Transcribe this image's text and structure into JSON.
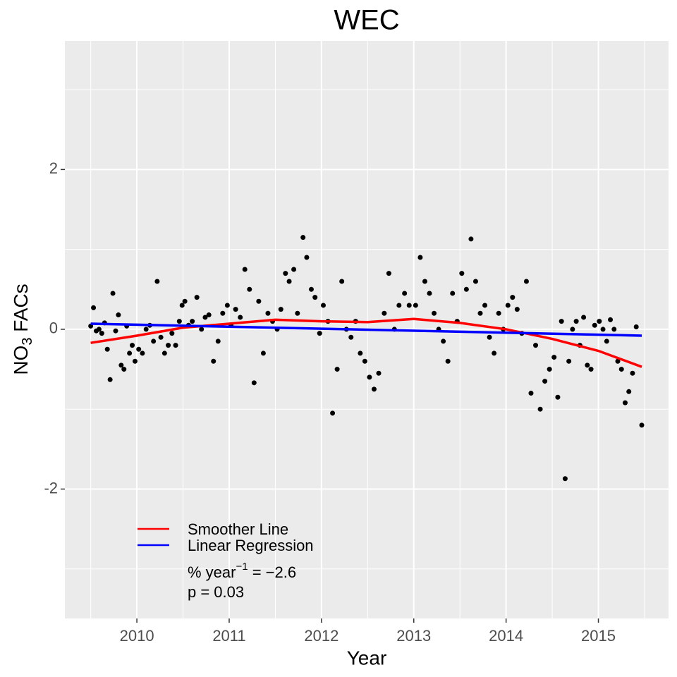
{
  "chart_data": {
    "type": "scatter",
    "title": "WEC",
    "xlabel": "Year",
    "ylabel": {
      "text": "NO",
      "sub": "3",
      "rest": " FACs"
    },
    "xlim": [
      2009.22,
      2015.76
    ],
    "ylim": [
      -3.62,
      3.61
    ],
    "xticks": [
      2010,
      2011,
      2012,
      2013,
      2014,
      2015
    ],
    "yticks": [
      -2,
      0,
      2
    ],
    "xminor": [
      2009.5,
      2010.5,
      2011.5,
      2012.5,
      2013.5,
      2014.5,
      2015.5
    ],
    "yminor": [
      -3,
      -1,
      1,
      3
    ],
    "grid": true,
    "legend": "bottom-left",
    "points": {
      "color": "#000000",
      "x": [
        2009.5,
        2009.53,
        2009.56,
        2009.59,
        2009.62,
        2009.65,
        2009.68,
        2009.71,
        2009.74,
        2009.77,
        2009.8,
        2009.83,
        2009.86,
        2009.89,
        2009.92,
        2009.95,
        2009.98,
        2010.02,
        2010.06,
        2010.1,
        2010.14,
        2010.18,
        2010.22,
        2010.26,
        2010.3,
        2010.34,
        2010.38,
        2010.42,
        2010.46,
        2010.49,
        2010.52,
        2010.56,
        2010.6,
        2010.65,
        2010.7,
        2010.74,
        2010.78,
        2010.83,
        2010.88,
        2010.93,
        2010.98,
        2011.02,
        2011.07,
        2011.12,
        2011.17,
        2011.22,
        2011.27,
        2011.32,
        2011.37,
        2011.42,
        2011.47,
        2011.52,
        2011.56,
        2011.61,
        2011.65,
        2011.7,
        2011.74,
        2011.8,
        2011.84,
        2011.89,
        2011.93,
        2011.98,
        2012.02,
        2012.07,
        2012.12,
        2012.17,
        2012.22,
        2012.27,
        2012.32,
        2012.37,
        2012.42,
        2012.47,
        2012.52,
        2012.57,
        2012.62,
        2012.68,
        2012.73,
        2012.79,
        2012.84,
        2012.9,
        2012.95,
        2013.02,
        2013.07,
        2013.12,
        2013.17,
        2013.22,
        2013.27,
        2013.32,
        2013.37,
        2013.42,
        2013.47,
        2013.52,
        2013.57,
        2013.62,
        2013.67,
        2013.72,
        2013.77,
        2013.82,
        2013.87,
        2013.92,
        2013.97,
        2014.02,
        2014.07,
        2014.12,
        2014.17,
        2014.22,
        2014.27,
        2014.32,
        2014.37,
        2014.42,
        2014.47,
        2014.52,
        2014.56,
        2014.6,
        2014.64,
        2014.68,
        2014.72,
        2014.76,
        2014.8,
        2014.84,
        2014.88,
        2014.92,
        2014.96,
        2015.01,
        2015.05,
        2015.09,
        2015.13,
        2015.17,
        2015.21,
        2015.25,
        2015.29,
        2015.33,
        2015.37,
        2015.41,
        2015.47
      ],
      "y": [
        0.04,
        0.27,
        -0.02,
        0.0,
        -0.05,
        0.08,
        -0.25,
        -0.63,
        0.45,
        -0.02,
        0.18,
        -0.45,
        -0.5,
        0.04,
        -0.3,
        -0.2,
        -0.4,
        -0.25,
        -0.3,
        0.0,
        0.05,
        -0.15,
        0.6,
        -0.1,
        -0.3,
        -0.2,
        -0.05,
        -0.2,
        0.1,
        0.3,
        0.35,
        0.05,
        0.1,
        0.4,
        0.0,
        0.15,
        0.18,
        -0.4,
        -0.15,
        0.2,
        0.3,
        0.05,
        0.25,
        0.15,
        0.75,
        0.5,
        -0.67,
        0.35,
        -0.3,
        0.2,
        0.1,
        0.0,
        0.25,
        0.7,
        0.6,
        0.75,
        0.2,
        1.15,
        0.9,
        0.5,
        0.4,
        -0.05,
        0.3,
        0.1,
        -1.05,
        -0.5,
        0.6,
        0.0,
        -0.1,
        0.1,
        -0.3,
        -0.4,
        -0.6,
        -0.75,
        -0.55,
        0.2,
        0.7,
        0.0,
        0.3,
        0.45,
        0.3,
        0.3,
        0.9,
        0.6,
        0.45,
        0.2,
        0.0,
        -0.15,
        -0.4,
        0.45,
        0.1,
        0.7,
        0.5,
        1.13,
        0.6,
        0.2,
        0.3,
        -0.1,
        -0.3,
        0.2,
        0.0,
        0.3,
        0.4,
        0.25,
        -0.05,
        0.6,
        -0.8,
        -0.2,
        -1.0,
        -0.65,
        -0.5,
        -0.35,
        -0.85,
        0.1,
        -1.87,
        -0.4,
        0.0,
        0.1,
        -0.2,
        0.15,
        -0.45,
        -0.5,
        0.05,
        0.1,
        0.0,
        -0.15,
        0.12,
        0.0,
        -0.4,
        -0.5,
        -0.92,
        -0.78,
        -0.55,
        0.03,
        -1.2
      ]
    },
    "series": [
      {
        "name": "Smoother Line",
        "color": "#ff0000",
        "x": [
          2009.5,
          2010,
          2010.5,
          2011,
          2011.5,
          2012,
          2012.5,
          2013,
          2013.5,
          2014,
          2014.5,
          2015,
          2015.47
        ],
        "values": [
          -0.17,
          -0.08,
          0.02,
          0.07,
          0.12,
          0.1,
          0.09,
          0.13,
          0.08,
          0.0,
          -0.12,
          -0.27,
          -0.47
        ]
      },
      {
        "name": "Linear Regression",
        "color": "#0000ff",
        "x": [
          2009.5,
          2015.47
        ],
        "values": [
          0.07,
          -0.08
        ]
      }
    ],
    "annotation": {
      "text": "% year",
      "sup": "−1",
      "rest": " = −2.6",
      "p": "p = 0.03"
    }
  }
}
